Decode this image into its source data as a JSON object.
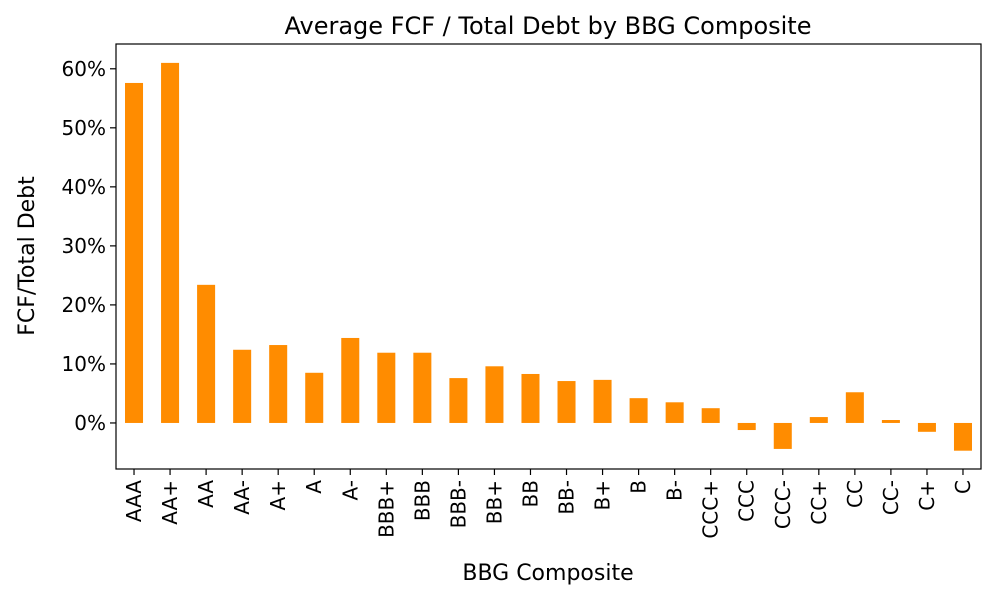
{
  "chart_data": {
    "type": "bar",
    "title": "Average FCF / Total Debt by BBG Composite",
    "xlabel": "BBG Composite",
    "ylabel": "FCF/Total Debt",
    "categories": [
      "AAA",
      "AA+",
      "AA",
      "AA-",
      "A+",
      "A",
      "A-",
      "BBB+",
      "BBB",
      "BBB-",
      "BB+",
      "BB",
      "BB-",
      "B+",
      "B",
      "B-",
      "CCC+",
      "CCC",
      "CCC-",
      "CC+",
      "CC",
      "CC-",
      "C+",
      "C"
    ],
    "values": [
      57.6,
      61.0,
      23.4,
      12.4,
      13.2,
      8.5,
      14.4,
      11.9,
      11.9,
      7.6,
      9.6,
      8.3,
      7.1,
      7.3,
      4.2,
      3.5,
      2.5,
      -1.2,
      -4.4,
      1.0,
      5.2,
      0.5,
      -1.5,
      -4.7
    ],
    "ylim": [
      -7.8,
      64.2
    ],
    "yticks": [
      0,
      10,
      20,
      30,
      40,
      50,
      60
    ],
    "ytick_labels": [
      "0%",
      "10%",
      "20%",
      "30%",
      "40%",
      "50%",
      "60%"
    ],
    "bar_color": "#ff8c00",
    "grid": false,
    "legend": false
  }
}
